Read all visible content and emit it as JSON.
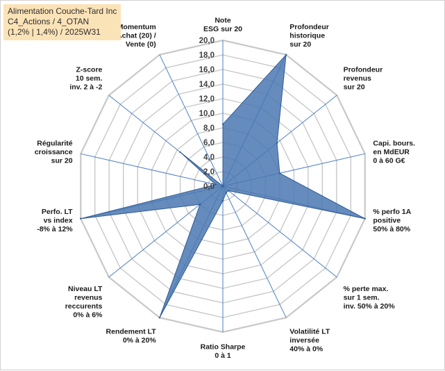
{
  "header": {
    "line1": "Alimentation Couche-Tard Inc",
    "line2": "C4_Actions / 4_OTAN",
    "line3": "(1,2% | 1,4%) / 2025W31"
  },
  "colors": {
    "fill": "#4a78b2",
    "stroke": "#2f5a92",
    "grid": "#c8c8c8",
    "spoke": "#4a7fc4"
  },
  "chart_data": {
    "type": "radar",
    "rlim": [
      0,
      20
    ],
    "rstep": 2,
    "tick_labels": [
      "0,0",
      "2,0",
      "4,0",
      "6,0",
      "8,0",
      "10,0",
      "12,0",
      "14,0",
      "16,0",
      "18,0",
      "20,0"
    ],
    "axes": [
      {
        "label": [
          "Note",
          "ESG sur 20"
        ],
        "value": 8.5
      },
      {
        "label": [
          "Profondeur",
          "historique",
          "sur 20"
        ],
        "value": 20
      },
      {
        "label": [
          "Profondeur",
          "revenus",
          "sur 20"
        ],
        "value": 9.5
      },
      {
        "label": [
          "Capi. bours.",
          "en MdEUR",
          "0 à 60 G€"
        ],
        "value": 8.0
      },
      {
        "label": [
          "% perfo 1A",
          "positive",
          "50% à 80%"
        ],
        "value": 20
      },
      {
        "label": [
          "% perte max.",
          "sur 1 sem.",
          "inv. 50% à 20%"
        ],
        "value": 1.0
      },
      {
        "label": [
          "Volatilité LT",
          "inversée",
          "40% à 0%"
        ],
        "value": 1.0
      },
      {
        "label": [
          "Ratio Sharpe",
          "0 à 1"
        ],
        "value": 2.0
      },
      {
        "label": [
          "Rendement LT",
          "0% à 20%"
        ],
        "value": 20
      },
      {
        "label": [
          "Niveau LT",
          "revenus",
          "reccurents",
          "0% à 6%"
        ],
        "value": 4.0
      },
      {
        "label": [
          "Perfo. LT",
          "vs index",
          "-8% à 12%"
        ],
        "value": 20
      },
      {
        "label": [
          "Régularité",
          "croissance",
          "sur 20"
        ],
        "value": 1.0
      },
      {
        "label": [
          "Z-score",
          "10 sem.",
          "inv. 2 à -2"
        ],
        "value": 7.5
      },
      {
        "label": [
          "Momentum",
          "Achat (20) /",
          "Vente (0)"
        ],
        "value": 0
      }
    ]
  }
}
